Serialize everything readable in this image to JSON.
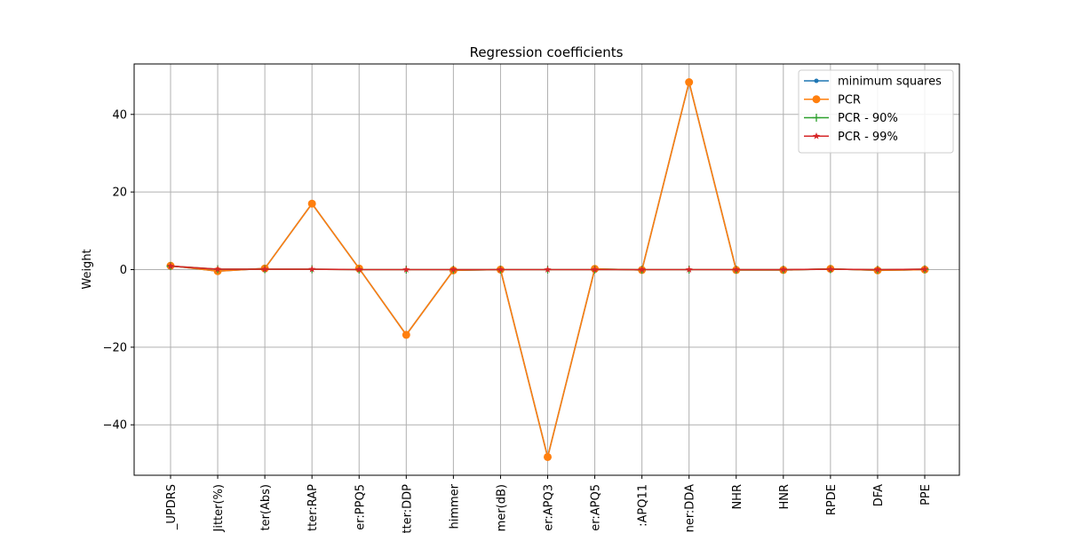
{
  "chart_data": {
    "type": "line",
    "title": "Regression coefficients",
    "xlabel": "",
    "ylabel": "Weight",
    "ylim": [
      -53,
      53
    ],
    "yticks": [
      -40,
      -20,
      0,
      20,
      40
    ],
    "ytick_labels": [
      "−40",
      "−20",
      "0",
      "20",
      "40"
    ],
    "grid": true,
    "legend_position": "top-right",
    "categories": [
      "_UPDRS",
      "Jitter(%)",
      "ter(Abs)",
      "tter:RAP",
      "er:PPQ5",
      "tter:DDP",
      "himmer",
      "mer(dB)",
      "er:APQ3",
      "er:APQ5",
      ":APQ11",
      "ner:DDA",
      "NHR",
      "HNR",
      "RPDE",
      "DFA",
      "PPE"
    ],
    "series": [
      {
        "name": "minimum squares",
        "color": "#1f77b4",
        "marker": "dot",
        "values": [
          1.0,
          -0.4,
          0.3,
          17.0,
          0.3,
          -16.8,
          -0.2,
          0.0,
          -48.3,
          0.2,
          -0.1,
          48.3,
          -0.1,
          -0.1,
          0.2,
          -0.2,
          0.0
        ]
      },
      {
        "name": "PCR",
        "color": "#ff7f0e",
        "marker": "circle",
        "values": [
          1.0,
          -0.4,
          0.3,
          17.0,
          0.3,
          -16.8,
          -0.2,
          0.0,
          -48.3,
          0.2,
          -0.1,
          48.3,
          -0.1,
          -0.1,
          0.2,
          -0.2,
          0.0
        ]
      },
      {
        "name": "PCR - 90%",
        "color": "#2ca02c",
        "marker": "plus",
        "values": [
          0.9,
          0.1,
          0.1,
          0.1,
          0.0,
          0.0,
          0.0,
          0.0,
          0.0,
          0.0,
          0.0,
          0.0,
          0.0,
          0.0,
          0.1,
          0.0,
          0.1
        ]
      },
      {
        "name": "PCR - 99%",
        "color": "#d62728",
        "marker": "star",
        "values": [
          0.9,
          0.1,
          0.1,
          0.1,
          0.0,
          0.0,
          0.0,
          0.0,
          0.0,
          0.0,
          0.0,
          0.0,
          0.0,
          0.0,
          0.1,
          0.0,
          0.1
        ]
      }
    ]
  }
}
